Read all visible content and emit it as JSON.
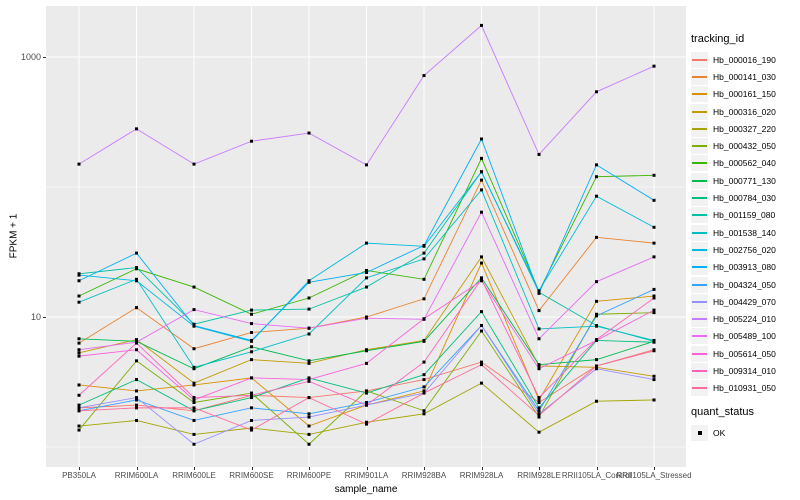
{
  "chart_data": {
    "type": "line",
    "xlabel": "sample_name",
    "ylabel": "FPKM + 1",
    "y_scale": "log10",
    "ylim": [
      0.7,
      2460
    ],
    "grid": true,
    "legend_position": "right",
    "panel_bg": "#EBEBEB",
    "grid_color": "#FFFFFF",
    "point_color": "#000000",
    "y_ticks": [
      {
        "label": "1000",
        "value": 1000
      },
      {
        "label": "10",
        "value": 10
      }
    ],
    "y_minor_values": [
      100,
      1
    ],
    "categories": [
      "PB350LA",
      "RRIM600LA",
      "RRIM600LE",
      "RRIM600SE",
      "RRIM600PE",
      "RRIM901LA",
      "RRIM928BA",
      "RRIM928LA",
      "RRIM928LE",
      "RRII105LA_Control",
      "RRII105LA_Stressed"
    ],
    "series": [
      {
        "name": "Hb_000016_190",
        "color": "#F8766D",
        "values": [
          2.0,
          2.1,
          1.9,
          2.5,
          2.4,
          2.7,
          3.3,
          4.5,
          2.2,
          4.2,
          5.6
        ]
      },
      {
        "name": "Hb_000141_030",
        "color": "#EA8331",
        "values": [
          6.3,
          11.8,
          5.7,
          7.6,
          8.2,
          10.0,
          13.8,
          113,
          11.2,
          41,
          37
        ]
      },
      {
        "name": "Hb_000161_150",
        "color": "#D89000",
        "values": [
          3.0,
          2.7,
          3.0,
          3.4,
          1.45,
          2.1,
          2.7,
          26,
          2.3,
          13.2,
          14.5
        ]
      },
      {
        "name": "Hb_000316_020",
        "color": "#C09B00",
        "values": [
          5.3,
          6.7,
          3.1,
          4.7,
          4.4,
          5.6,
          6.6,
          29,
          4.2,
          4.1,
          3.5
        ]
      },
      {
        "name": "Hb_000327_220",
        "color": "#A3A500",
        "values": [
          1.45,
          1.6,
          1.25,
          1.4,
          1.25,
          1.55,
          1.8,
          3.1,
          1.3,
          2.25,
          2.3
        ]
      },
      {
        "name": "Hb_000432_050",
        "color": "#7CAE00",
        "values": [
          1.35,
          4.6,
          2.2,
          2.6,
          1.05,
          2.7,
          1.9,
          7.8,
          1.7,
          10.5,
          10.8
        ]
      },
      {
        "name": "Hb_000562_040",
        "color": "#39B600",
        "values": [
          14.5,
          23.5,
          17.0,
          10.5,
          14.0,
          22.8,
          19.5,
          166,
          15.8,
          120,
          123
        ]
      },
      {
        "name": "Hb_000771_130",
        "color": "#00BB4E",
        "values": [
          6.8,
          6.5,
          4.0,
          5.9,
          4.6,
          5.5,
          6.5,
          20,
          4.3,
          4.7,
          6.5
        ]
      },
      {
        "name": "Hb_000784_030",
        "color": "#00BF7D",
        "values": [
          2.1,
          3.3,
          1.9,
          2.4,
          3.4,
          2.6,
          3.6,
          11,
          2.0,
          6.6,
          6.4
        ]
      },
      {
        "name": "Hb_001159_080",
        "color": "#00C1A3",
        "values": [
          21.5,
          24.0,
          8.8,
          11.3,
          11.5,
          17.0,
          31,
          131,
          15.5,
          8.6,
          6.5
        ]
      },
      {
        "name": "Hb_001538_140",
        "color": "#00BFC4",
        "values": [
          13.0,
          19.5,
          4.1,
          5.4,
          7.4,
          20,
          28,
          95,
          8.1,
          8.5,
          6.6
        ]
      },
      {
        "name": "Hb_002756_020",
        "color": "#00BAE0",
        "values": [
          21.0,
          19.0,
          8.5,
          6.5,
          19.0,
          37,
          35,
          131,
          15.9,
          85,
          49
        ]
      },
      {
        "name": "Hb_003913_080",
        "color": "#00B0F6",
        "values": [
          19.0,
          31.0,
          8.6,
          6.6,
          18.5,
          22,
          35.5,
          234,
          15.2,
          148,
          79
        ]
      },
      {
        "name": "Hb_004324_050",
        "color": "#35A2FF",
        "values": [
          1.9,
          2.3,
          1.6,
          2.0,
          1.8,
          2.2,
          2.9,
          8.6,
          1.9,
          10.2,
          16.3
        ]
      },
      {
        "name": "Hb_004429_070",
        "color": "#9590FF",
        "values": [
          2.0,
          2.4,
          1.05,
          1.6,
          1.7,
          2.1,
          2.6,
          8.6,
          1.8,
          4.0,
          3.3
        ]
      },
      {
        "name": "Hb_005224_010",
        "color": "#C77CFF",
        "values": [
          150,
          280,
          150,
          225,
          260,
          148,
          720,
          1750,
          178,
          540,
          850
        ]
      },
      {
        "name": "Hb_005489_100",
        "color": "#E76BF3",
        "values": [
          5.6,
          6.4,
          11.4,
          8.9,
          8.2,
          9.8,
          9.6,
          64,
          6.8,
          18.7,
          29
        ]
      },
      {
        "name": "Hb_005614_050",
        "color": "#FA62DB",
        "values": [
          5.0,
          5.6,
          2.3,
          3.4,
          3.3,
          4.4,
          9.7,
          19,
          4.0,
          6.6,
          11.3
        ]
      },
      {
        "name": "Hb_009314_010",
        "color": "#FF62BC",
        "values": [
          2.5,
          6.3,
          2.4,
          2.5,
          3.2,
          2.1,
          4.5,
          19.5,
          2.4,
          6.7,
          14.0
        ]
      },
      {
        "name": "Hb_010931_050",
        "color": "#FF6A98",
        "values": [
          1.9,
          2.0,
          2.0,
          1.35,
          2.4,
          1.5,
          2.6,
          4.3,
          1.75,
          4.2,
          5.5
        ]
      }
    ]
  },
  "legend": {
    "tracking_title": "tracking_id",
    "quant_title": "quant_status",
    "quant_items": [
      {
        "label": "OK"
      }
    ]
  }
}
